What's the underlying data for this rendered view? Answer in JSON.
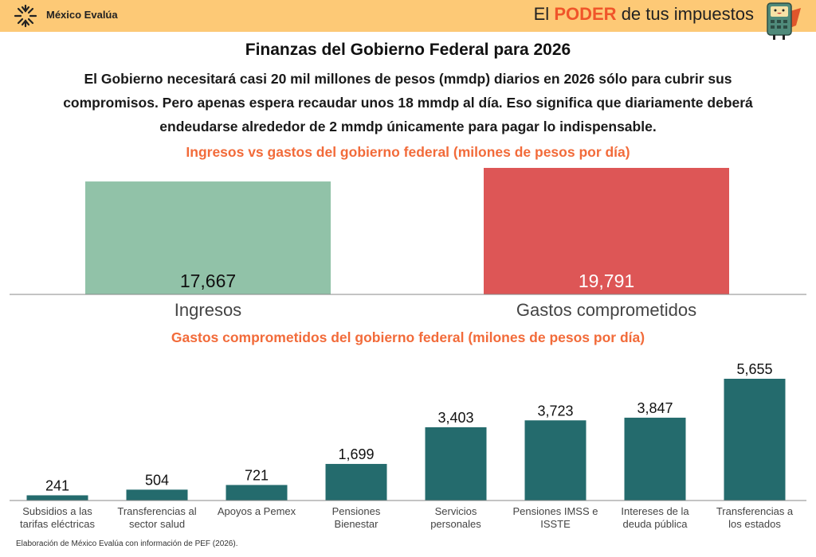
{
  "header": {
    "logo_text": "México Evalúa",
    "brand_prefix": "El",
    "brand_highlight": "PODER",
    "brand_suffix": "de tus impuestos",
    "header_color": "#fdc976"
  },
  "title": "Finanzas del Gobierno Federal para 2026",
  "paragraph": "El Gobierno necesitará casi 20 mil millones de pesos (mmdp) diarios en 2026 sólo para cubrir sus compromisos. Pero apenas espera recaudar unos 18 mmdp al día. Eso significa que diariamente deberá endeudarse alrededor de 2 mmdp únicamente para pagar lo indispensable.",
  "footnote": "Elaboración de México Evalúa con información de PEF (2026).",
  "chart_data": [
    {
      "type": "bar",
      "title": "Ingresos vs gastos del gobierno federal (milones de pesos por día)",
      "categories": [
        "Ingresos",
        "Gastos comprometidos"
      ],
      "values": [
        17667,
        19791
      ],
      "data_labels": [
        "17,667",
        "19,791"
      ],
      "colors": [
        "#91c2a8",
        "#dd5656"
      ],
      "grid": false,
      "ylim": [
        0,
        19791
      ]
    },
    {
      "type": "bar",
      "title": "Gastos comprometidos del gobierno federal (milones de pesos por día)",
      "categories": [
        [
          "Subsidios a las",
          "tarifas eléctricas"
        ],
        [
          "Transferencias al",
          "sector salud"
        ],
        [
          "Apoyos a Pemex",
          ""
        ],
        [
          "Pensiones",
          "Bienestar"
        ],
        [
          "Servicios",
          "personales"
        ],
        [
          "Pensiones IMSS e",
          "ISSTE"
        ],
        [
          "Intereses de la",
          "deuda pública"
        ],
        [
          "Transferencias a",
          "los estados"
        ]
      ],
      "values": [
        241,
        504,
        721,
        1699,
        3403,
        3723,
        3847,
        5655
      ],
      "data_labels": [
        "241",
        "504",
        "721",
        "1,699",
        "3,403",
        "3,723",
        "3,847",
        "5,655"
      ],
      "color": "#246b6d",
      "grid": false,
      "ylim": [
        0,
        5655
      ]
    }
  ]
}
